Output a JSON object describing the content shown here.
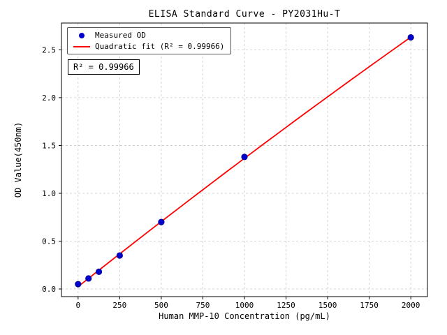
{
  "chart_data": {
    "type": "scatter",
    "title": "ELISA Standard Curve - PY2031Hu-T",
    "xlabel": "Human MMP-10 Concentration (pg/mL)",
    "ylabel": "OD Value(450nm)",
    "series": [
      {
        "name": "Measured OD",
        "x": [
          0,
          62.5,
          125,
          250,
          500,
          1000,
          2000
        ],
        "y": [
          0.05,
          0.11,
          0.18,
          0.35,
          0.7,
          1.38,
          2.63
        ]
      }
    ],
    "fit": {
      "type": "quadratic",
      "r_squared": "0.99966",
      "x_range": [
        0,
        2000
      ]
    },
    "xlim": [
      -100,
      2100
    ],
    "ylim": [
      -0.08,
      2.78
    ],
    "xticks": [
      0,
      250,
      500,
      750,
      1000,
      1250,
      1500,
      1750,
      2000
    ],
    "yticks": [
      0.0,
      0.5,
      1.0,
      1.5,
      2.0,
      2.5
    ],
    "grid": true,
    "legend_position": "upper-left",
    "legend": {
      "measured": "Measured OD",
      "fit": "Quadratic fit (R² = 0.99966)"
    },
    "annotation": "R² = 0.99966",
    "colors": {
      "points": "#0000cd",
      "point_edge": "#00008b",
      "line": "#ff0000",
      "grid": "#c8c8c8",
      "frame": "#000000",
      "text": "#000000"
    }
  }
}
